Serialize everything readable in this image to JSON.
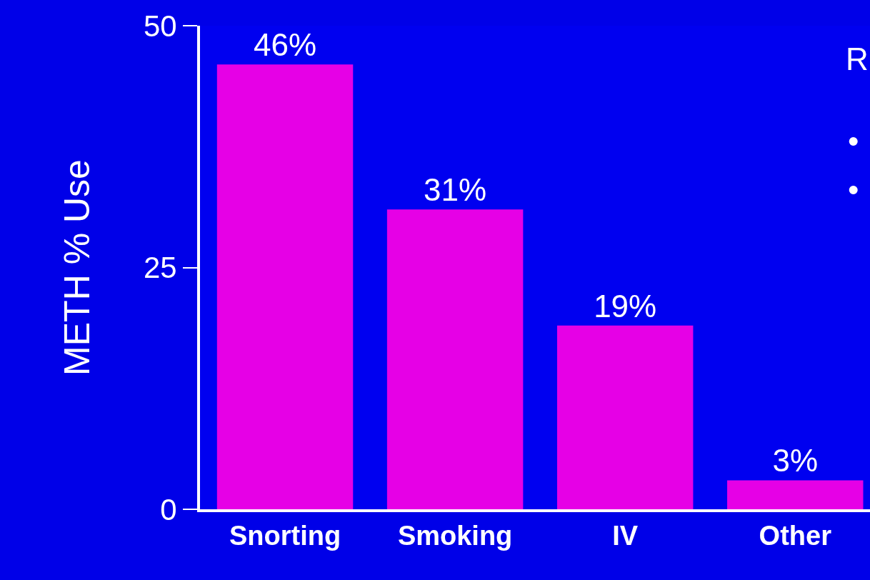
{
  "chart_data": {
    "type": "bar",
    "ylabel": "METH % Use",
    "categories": [
      "Snorting",
      "Smoking",
      "IV",
      "Other"
    ],
    "values": [
      46,
      31,
      19,
      3
    ],
    "value_labels": [
      "46%",
      "31%",
      "19%",
      "3%"
    ],
    "color": "#e600e6",
    "ylim": [
      0,
      50
    ],
    "yticks": [
      0,
      25,
      50
    ],
    "grid": false,
    "legend": false,
    "annotations": [
      "R",
      "•",
      "•"
    ]
  }
}
